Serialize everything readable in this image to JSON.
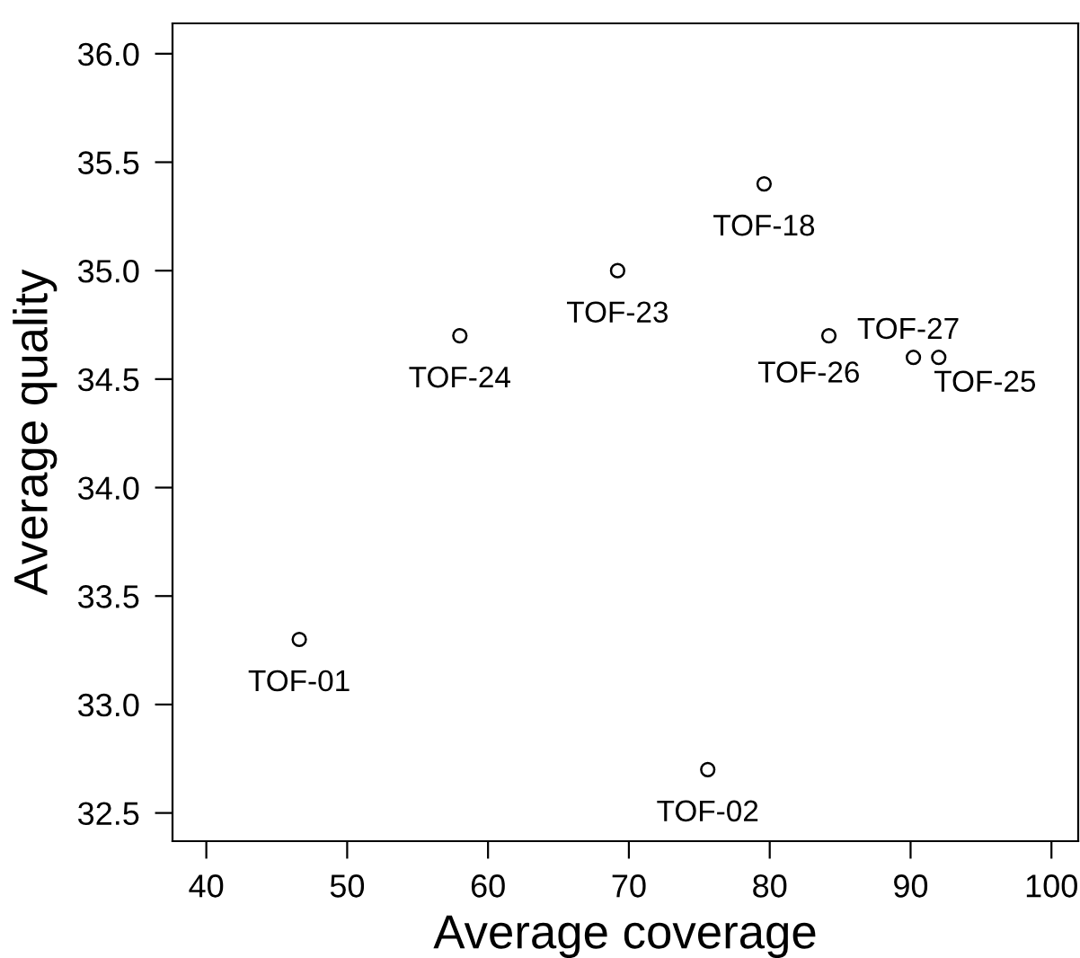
{
  "chart_data": {
    "type": "scatter",
    "xlabel": "Average coverage",
    "ylabel": "Average quality",
    "series": [
      {
        "color": "#000000",
        "x": [
          79.6,
          69.2,
          58.0,
          84.2,
          90.2,
          92.0,
          46.6,
          75.6
        ],
        "values": [
          35.4,
          35.0,
          34.7,
          34.7,
          34.6,
          34.6,
          33.3,
          32.7
        ]
      }
    ],
    "marker": "circle",
    "xlim": [
      37.6,
      101.9
    ],
    "ylim": [
      32.37,
      36.14
    ],
    "xticks": [
      40,
      50,
      60,
      70,
      80,
      90,
      100
    ],
    "yticks": [
      {
        "value": 32.5,
        "label": "32.5"
      },
      {
        "value": 33.0,
        "label": "33.0"
      },
      {
        "value": 33.5,
        "label": "33.5"
      },
      {
        "value": 34.0,
        "label": "34.0"
      },
      {
        "value": 34.5,
        "label": "34.5"
      },
      {
        "value": 35.0,
        "label": "35.0"
      },
      {
        "value": 35.5,
        "label": "35.5"
      },
      {
        "value": 36.0,
        "label": "36.0"
      }
    ],
    "annotations": [
      {
        "text": "TOF-18",
        "x": 79.6,
        "y": 35.4
      },
      {
        "text": "TOF-23",
        "x": 69.2,
        "y": 35.0
      },
      {
        "text": "TOF-24",
        "x": 58.0,
        "y": 34.7
      },
      {
        "text": "TOF-26",
        "x": 84.2,
        "y": 34.7
      },
      {
        "text": "TOF-27",
        "x": 90.2,
        "y": 34.6
      },
      {
        "text": "TOF-25",
        "x": 92.0,
        "y": 34.6
      },
      {
        "text": "TOF-01",
        "x": 46.6,
        "y": 33.3
      },
      {
        "text": "TOF-02",
        "x": 75.6,
        "y": 32.7
      }
    ]
  }
}
